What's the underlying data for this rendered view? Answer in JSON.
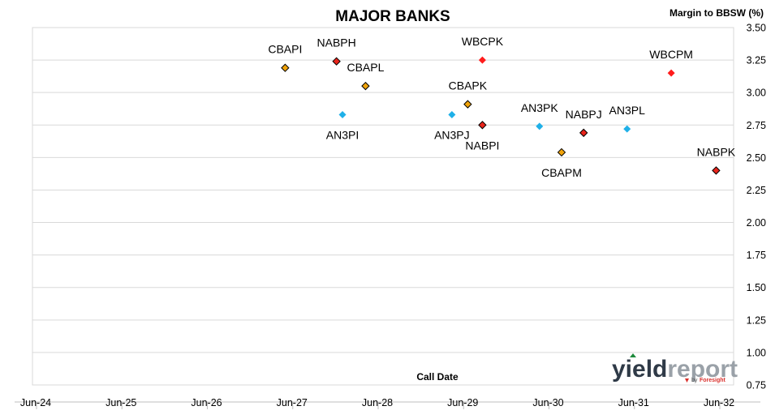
{
  "chart_data": {
    "type": "scatter",
    "title": "MAJOR BANKS",
    "ylabel": "Margin to BBSW (%)",
    "xlabel": "Call Date",
    "ylim": [
      0.75,
      3.5
    ],
    "yticks": [
      "3.50",
      "3.25",
      "3.00",
      "2.75",
      "2.50",
      "2.25",
      "2.00",
      "1.75",
      "1.50",
      "1.25",
      "1.00",
      "0.75"
    ],
    "xlim": [
      "2024-06-01",
      "2032-06-01"
    ],
    "xticks": [
      "Jun-24",
      "Jun-25",
      "Jun-26",
      "Jun-27",
      "Jun-28",
      "Jun-29",
      "Jun-30",
      "Jun-31",
      "Jun-32"
    ],
    "grid": "horizontal",
    "axis_position": "right",
    "points": [
      {
        "label": "CBAPI",
        "x": "2027-04-20",
        "y": 3.19,
        "color": "#f0a30a",
        "label_pos": "above"
      },
      {
        "label": "NABPH",
        "x": "2027-11-20",
        "y": 3.24,
        "color": "#e8241b",
        "label_pos": "above"
      },
      {
        "label": "CBAPL",
        "x": "2028-03-20",
        "y": 3.05,
        "color": "#f0a30a",
        "label_pos": "above"
      },
      {
        "label": "AN3PI",
        "x": "2027-12-15",
        "y": 2.83,
        "color": "#1fb0e8",
        "label_pos": "below"
      },
      {
        "label": "AN3PJ",
        "x": "2029-03-15",
        "y": 2.83,
        "color": "#1fb0e8",
        "label_pos": "below"
      },
      {
        "label": "CBAPK",
        "x": "2029-05-20",
        "y": 2.91,
        "color": "#f0a30a",
        "label_pos": "above"
      },
      {
        "label": "WBCPK",
        "x": "2029-07-20",
        "y": 3.25,
        "color": "#ff1c1c",
        "label_pos": "above"
      },
      {
        "label": "NABPI",
        "x": "2029-07-20",
        "y": 2.75,
        "color": "#e8241b",
        "label_pos": "below"
      },
      {
        "label": "AN3PK",
        "x": "2030-03-15",
        "y": 2.74,
        "color": "#1fb0e8",
        "label_pos": "above"
      },
      {
        "label": "NABPJ",
        "x": "2030-09-15",
        "y": 2.69,
        "color": "#e8241b",
        "label_pos": "above"
      },
      {
        "label": "CBAPM",
        "x": "2030-06-15",
        "y": 2.54,
        "color": "#f0a30a",
        "label_pos": "below"
      },
      {
        "label": "AN3PL",
        "x": "2031-03-15",
        "y": 2.72,
        "color": "#1fb0e8",
        "label_pos": "above"
      },
      {
        "label": "WBCPM",
        "x": "2031-09-15",
        "y": 3.15,
        "color": "#ff1c1c",
        "label_pos": "above"
      },
      {
        "label": "NABPK",
        "x": "2032-03-20",
        "y": 2.4,
        "color": "#e8241b",
        "label_pos": "above"
      }
    ]
  },
  "logo": {
    "part1": "yield",
    "part2": "report",
    "by": "by",
    "brand": "Foresight"
  }
}
